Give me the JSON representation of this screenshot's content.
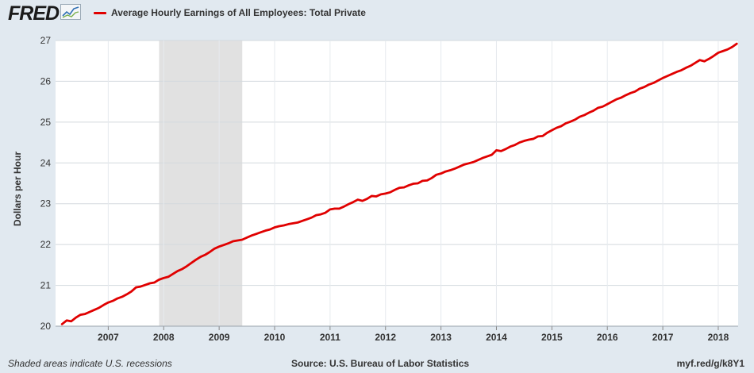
{
  "header": {
    "logo_text": "FRED",
    "logo_icon": "line-chart-icon",
    "legend_label": "Average Hourly Earnings of All Employees: Total Private",
    "series_color": "#e00000"
  },
  "footer": {
    "left": "Shaded areas indicate U.S. recessions",
    "source": "Source: U.S. Bureau of Labor Statistics",
    "link": "myf.red/g/k8Y1"
  },
  "chart_data": {
    "type": "line",
    "title": "",
    "ylabel": "Dollars per Hour",
    "xlabel": "",
    "ylim": [
      20,
      27
    ],
    "yticks": [
      20,
      21,
      22,
      23,
      24,
      25,
      26,
      27
    ],
    "xticks": [
      "2007",
      "2008",
      "2009",
      "2010",
      "2011",
      "2012",
      "2013",
      "2014",
      "2015",
      "2016",
      "2017",
      "2018"
    ],
    "xlim": [
      "2006-03",
      "2018-05"
    ],
    "grid": true,
    "recession_shading": [
      {
        "start": "2007-12",
        "end": "2009-06"
      }
    ],
    "series": [
      {
        "name": "Average Hourly Earnings of All Employees: Total Private",
        "color": "#e00000",
        "points": [
          [
            "2006-03",
            20.05
          ],
          [
            "2006-04",
            20.14
          ],
          [
            "2006-05",
            20.12
          ],
          [
            "2006-06",
            20.21
          ],
          [
            "2006-07",
            20.28
          ],
          [
            "2006-08",
            20.3
          ],
          [
            "2006-09",
            20.35
          ],
          [
            "2006-10",
            20.4
          ],
          [
            "2006-11",
            20.45
          ],
          [
            "2006-12",
            20.52
          ],
          [
            "2007-01",
            20.58
          ],
          [
            "2007-02",
            20.62
          ],
          [
            "2007-03",
            20.68
          ],
          [
            "2007-04",
            20.72
          ],
          [
            "2007-05",
            20.78
          ],
          [
            "2007-06",
            20.85
          ],
          [
            "2007-07",
            20.95
          ],
          [
            "2007-08",
            20.97
          ],
          [
            "2007-09",
            21.01
          ],
          [
            "2007-10",
            21.05
          ],
          [
            "2007-11",
            21.07
          ],
          [
            "2007-12",
            21.14
          ],
          [
            "2008-01",
            21.18
          ],
          [
            "2008-02",
            21.21
          ],
          [
            "2008-03",
            21.28
          ],
          [
            "2008-04",
            21.35
          ],
          [
            "2008-05",
            21.4
          ],
          [
            "2008-06",
            21.47
          ],
          [
            "2008-07",
            21.55
          ],
          [
            "2008-08",
            21.63
          ],
          [
            "2008-09",
            21.7
          ],
          [
            "2008-10",
            21.75
          ],
          [
            "2008-11",
            21.82
          ],
          [
            "2008-12",
            21.9
          ],
          [
            "2009-01",
            21.95
          ],
          [
            "2009-02",
            21.99
          ],
          [
            "2009-03",
            22.03
          ],
          [
            "2009-04",
            22.08
          ],
          [
            "2009-05",
            22.1
          ],
          [
            "2009-06",
            22.12
          ],
          [
            "2009-07",
            22.17
          ],
          [
            "2009-08",
            22.22
          ],
          [
            "2009-09",
            22.26
          ],
          [
            "2009-10",
            22.3
          ],
          [
            "2009-11",
            22.34
          ],
          [
            "2009-12",
            22.37
          ],
          [
            "2010-01",
            22.42
          ],
          [
            "2010-02",
            22.45
          ],
          [
            "2010-03",
            22.47
          ],
          [
            "2010-04",
            22.5
          ],
          [
            "2010-05",
            22.52
          ],
          [
            "2010-06",
            22.54
          ],
          [
            "2010-07",
            22.58
          ],
          [
            "2010-08",
            22.62
          ],
          [
            "2010-09",
            22.66
          ],
          [
            "2010-10",
            22.72
          ],
          [
            "2010-11",
            22.74
          ],
          [
            "2010-12",
            22.78
          ],
          [
            "2011-01",
            22.86
          ],
          [
            "2011-02",
            22.88
          ],
          [
            "2011-03",
            22.88
          ],
          [
            "2011-04",
            22.93
          ],
          [
            "2011-05",
            22.99
          ],
          [
            "2011-06",
            23.04
          ],
          [
            "2011-07",
            23.1
          ],
          [
            "2011-08",
            23.07
          ],
          [
            "2011-09",
            23.12
          ],
          [
            "2011-10",
            23.19
          ],
          [
            "2011-11",
            23.18
          ],
          [
            "2011-12",
            23.23
          ],
          [
            "2012-01",
            23.25
          ],
          [
            "2012-02",
            23.28
          ],
          [
            "2012-03",
            23.34
          ],
          [
            "2012-04",
            23.39
          ],
          [
            "2012-05",
            23.4
          ],
          [
            "2012-06",
            23.45
          ],
          [
            "2012-07",
            23.49
          ],
          [
            "2012-08",
            23.5
          ],
          [
            "2012-09",
            23.56
          ],
          [
            "2012-10",
            23.57
          ],
          [
            "2012-11",
            23.63
          ],
          [
            "2012-12",
            23.71
          ],
          [
            "2013-01",
            23.74
          ],
          [
            "2013-02",
            23.79
          ],
          [
            "2013-03",
            23.82
          ],
          [
            "2013-04",
            23.86
          ],
          [
            "2013-05",
            23.91
          ],
          [
            "2013-06",
            23.96
          ],
          [
            "2013-07",
            23.99
          ],
          [
            "2013-08",
            24.02
          ],
          [
            "2013-09",
            24.07
          ],
          [
            "2013-10",
            24.12
          ],
          [
            "2013-11",
            24.16
          ],
          [
            "2013-12",
            24.2
          ],
          [
            "2014-01",
            24.31
          ],
          [
            "2014-02",
            24.29
          ],
          [
            "2014-03",
            24.34
          ],
          [
            "2014-04",
            24.4
          ],
          [
            "2014-05",
            24.44
          ],
          [
            "2014-06",
            24.5
          ],
          [
            "2014-07",
            24.54
          ],
          [
            "2014-08",
            24.57
          ],
          [
            "2014-09",
            24.59
          ],
          [
            "2014-10",
            24.65
          ],
          [
            "2014-11",
            24.66
          ],
          [
            "2014-12",
            24.74
          ],
          [
            "2015-01",
            24.8
          ],
          [
            "2015-02",
            24.86
          ],
          [
            "2015-03",
            24.9
          ],
          [
            "2015-04",
            24.97
          ],
          [
            "2015-05",
            25.01
          ],
          [
            "2015-06",
            25.06
          ],
          [
            "2015-07",
            25.13
          ],
          [
            "2015-08",
            25.17
          ],
          [
            "2015-09",
            25.23
          ],
          [
            "2015-10",
            25.28
          ],
          [
            "2015-11",
            25.35
          ],
          [
            "2015-12",
            25.38
          ],
          [
            "2016-01",
            25.44
          ],
          [
            "2016-02",
            25.5
          ],
          [
            "2016-03",
            25.56
          ],
          [
            "2016-04",
            25.6
          ],
          [
            "2016-05",
            25.66
          ],
          [
            "2016-06",
            25.71
          ],
          [
            "2016-07",
            25.75
          ],
          [
            "2016-08",
            25.82
          ],
          [
            "2016-09",
            25.86
          ],
          [
            "2016-10",
            25.92
          ],
          [
            "2016-11",
            25.96
          ],
          [
            "2016-12",
            26.02
          ],
          [
            "2017-01",
            26.08
          ],
          [
            "2017-02",
            26.13
          ],
          [
            "2017-03",
            26.18
          ],
          [
            "2017-04",
            26.23
          ],
          [
            "2017-05",
            26.27
          ],
          [
            "2017-06",
            26.33
          ],
          [
            "2017-07",
            26.38
          ],
          [
            "2017-08",
            26.45
          ],
          [
            "2017-09",
            26.52
          ],
          [
            "2017-10",
            26.49
          ],
          [
            "2017-11",
            26.55
          ],
          [
            "2017-12",
            26.62
          ],
          [
            "2018-01",
            26.7
          ],
          [
            "2018-02",
            26.74
          ],
          [
            "2018-03",
            26.78
          ],
          [
            "2018-04",
            26.84
          ],
          [
            "2018-05",
            26.92
          ]
        ]
      }
    ]
  }
}
